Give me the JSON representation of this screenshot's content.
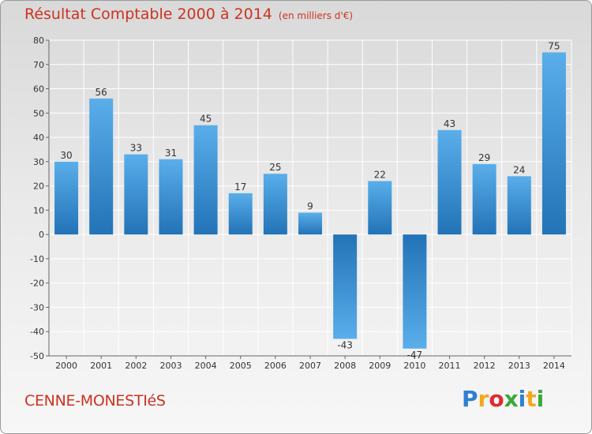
{
  "header": {
    "title": "Résultat Comptable 2000 à 2014",
    "subtitle": "(en milliers d'€)"
  },
  "footer": {
    "commune": "CENNE-MONESTIéS",
    "logo": [
      "P",
      "r",
      "o",
      "x",
      "i",
      "t",
      "i"
    ]
  },
  "colors": {
    "title": "#cc3322",
    "bar_light": "#5aaeea",
    "bar_dark": "#2273b7",
    "grid": "#ffffff"
  },
  "chart_data": {
    "type": "bar",
    "title": "Résultat Comptable 2000 à 2014",
    "subtitle": "(en milliers d'€)",
    "xlabel": "",
    "ylabel": "",
    "categories": [
      "2000",
      "2001",
      "2002",
      "2003",
      "2004",
      "2005",
      "2006",
      "2007",
      "2008",
      "2009",
      "2010",
      "2011",
      "2012",
      "2013",
      "2014"
    ],
    "values": [
      30,
      56,
      33,
      31,
      45,
      17,
      25,
      9,
      -43,
      22,
      -47,
      43,
      29,
      24,
      75
    ],
    "ylim": [
      -50,
      80
    ],
    "yticks": [
      80,
      70,
      60,
      50,
      40,
      30,
      20,
      10,
      0,
      -10,
      -20,
      -30,
      -40,
      -50
    ],
    "grid": true,
    "data_labels": true
  }
}
